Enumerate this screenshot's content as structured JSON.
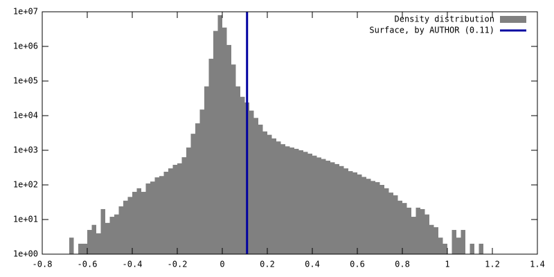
{
  "chart_data": {
    "type": "histogram",
    "log_y": true,
    "xlim": [
      -0.8,
      1.4
    ],
    "ylim": [
      1,
      10000000
    ],
    "xticks": [
      -0.8,
      -0.6,
      -0.4,
      -0.2,
      0,
      0.2,
      0.4,
      0.6,
      0.8,
      1,
      1.2,
      1.4
    ],
    "yticks": [
      {
        "value": 1,
        "label": "1e+00"
      },
      {
        "value": 10,
        "label": "1e+01"
      },
      {
        "value": 100,
        "label": "1e+02"
      },
      {
        "value": 1000,
        "label": "1e+03"
      },
      {
        "value": 10000,
        "label": "1e+04"
      },
      {
        "value": 100000,
        "label": "1e+05"
      },
      {
        "value": 1000000,
        "label": "1e+06"
      },
      {
        "value": 10000000,
        "label": "1e+07"
      }
    ],
    "legend": "top-right",
    "series": [
      {
        "name": "Density distribution",
        "color": "#808080",
        "bins": [
          -0.68,
          -0.66,
          -0.64,
          -0.62,
          -0.6,
          -0.58,
          -0.56,
          -0.54,
          -0.52,
          -0.5,
          -0.48,
          -0.46,
          -0.44,
          -0.42,
          -0.4,
          -0.38,
          -0.36,
          -0.34,
          -0.32,
          -0.3,
          -0.28,
          -0.26,
          -0.24,
          -0.22,
          -0.2,
          -0.18,
          -0.16,
          -0.14,
          -0.12,
          -0.1,
          -0.08,
          -0.06,
          -0.04,
          -0.02,
          0,
          0.02,
          0.04,
          0.06,
          0.08,
          0.1,
          0.12,
          0.14,
          0.16,
          0.18,
          0.2,
          0.22,
          0.24,
          0.26,
          0.28,
          0.3,
          0.32,
          0.34,
          0.36,
          0.38,
          0.4,
          0.42,
          0.44,
          0.46,
          0.48,
          0.5,
          0.52,
          0.54,
          0.56,
          0.58,
          0.6,
          0.62,
          0.64,
          0.66,
          0.68,
          0.7,
          0.72,
          0.74,
          0.76,
          0.78,
          0.8,
          0.82,
          0.84,
          0.86,
          0.88,
          0.9,
          0.92,
          0.94,
          0.96,
          0.98,
          1,
          1.02,
          1.04,
          1.06,
          1.08,
          1.1,
          1.12,
          1.14,
          1.16
        ],
        "values": [
          3,
          0,
          2,
          2,
          5,
          7,
          4,
          20,
          8,
          12,
          14,
          24,
          35,
          45,
          63,
          80,
          63,
          110,
          125,
          165,
          180,
          240,
          300,
          380,
          420,
          630,
          1200,
          3000,
          6000,
          15000,
          70000,
          440000,
          2800000,
          8000000,
          3500000,
          1100000,
          300000,
          70000,
          35000,
          24000,
          14000,
          8600,
          5500,
          3500,
          2800,
          2200,
          1800,
          1500,
          1300,
          1200,
          1100,
          1000,
          900,
          800,
          700,
          620,
          560,
          500,
          450,
          400,
          350,
          300,
          250,
          230,
          200,
          170,
          150,
          130,
          120,
          100,
          80,
          60,
          50,
          35,
          30,
          22,
          12,
          22,
          20,
          14,
          7,
          6,
          3,
          2,
          0,
          5,
          3,
          5,
          0,
          2,
          0,
          2
        ]
      }
    ],
    "vline": {
      "name": "Surface, by AUTHOR (0.11)",
      "x": 0.11,
      "color": "#0000a0"
    }
  }
}
